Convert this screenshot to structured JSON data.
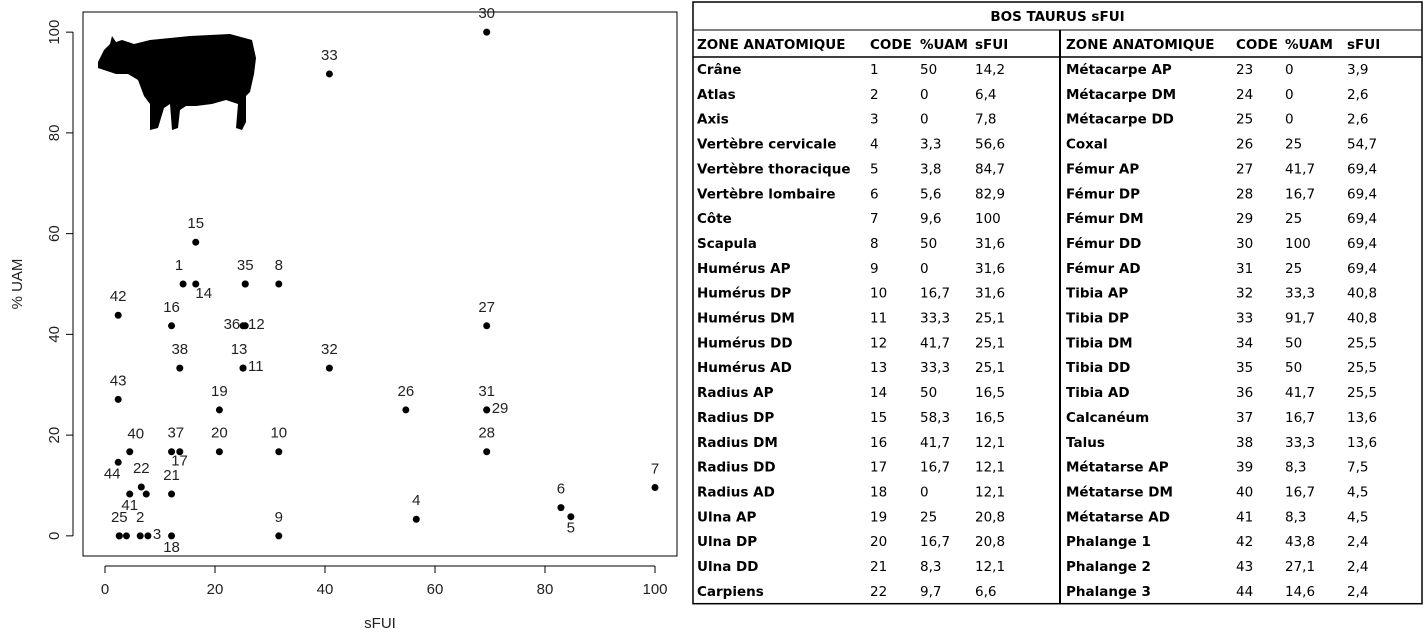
{
  "chart_data": {
    "type": "scatter",
    "xlabel": "sFUI",
    "ylabel": "% UAM",
    "x": [
      14.2,
      6.4,
      7.8,
      56.6,
      84.7,
      82.9,
      100,
      31.6,
      31.6,
      31.6,
      25.1,
      25.1,
      25.1,
      16.5,
      16.5,
      12.1,
      12.1,
      12.1,
      20.8,
      20.8,
      12.1,
      6.6,
      3.9,
      2.6,
      2.6,
      54.7,
      69.4,
      69.4,
      69.4,
      69.4,
      69.4,
      40.8,
      40.8,
      25.5,
      25.5,
      25.5,
      13.6,
      13.6,
      7.5,
      4.5,
      4.5,
      2.4,
      2.4,
      2.4
    ],
    "values": [
      50,
      0,
      0,
      3.3,
      3.8,
      5.6,
      9.6,
      50,
      0,
      16.7,
      33.3,
      41.7,
      33.3,
      50,
      58.3,
      41.7,
      16.7,
      0,
      25,
      16.7,
      8.3,
      9.7,
      0,
      0,
      0,
      25,
      41.7,
      16.7,
      25,
      100,
      25,
      33.3,
      91.7,
      50,
      50,
      41.7,
      16.7,
      33.3,
      8.3,
      16.7,
      8.3,
      43.8,
      27.1,
      14.6
    ],
    "point_labels": [
      "1",
      "2",
      "3",
      "4",
      "5",
      "6",
      "7",
      "8",
      "9",
      "10",
      "11",
      "12",
      "13",
      "14",
      "15",
      "16",
      "17",
      "18",
      "19",
      "20",
      "21",
      "22",
      null,
      null,
      "25",
      "26",
      "27",
      "28",
      "29",
      "30",
      "31",
      "32",
      "33",
      null,
      "35",
      "36",
      "37",
      "38",
      null,
      "40",
      "41",
      "42",
      "43",
      "44"
    ],
    "color": "#000000",
    "xlim": [
      -4,
      104
    ],
    "ylim": [
      -4,
      104
    ],
    "xticks": [
      0,
      20,
      40,
      60,
      80,
      100
    ],
    "yticks": [
      0,
      20,
      40,
      60,
      80,
      100
    ],
    "grid": false
  },
  "table": {
    "title": "BOS TAURUS sFUI",
    "columns": [
      "ZONE ANATOMIQUE",
      "CODE",
      "%UAM",
      "sFUI",
      "ZONE ANATOMIQUE",
      "CODE",
      "%UAM",
      "sFUI"
    ],
    "rows": [
      [
        "Crâne",
        "1",
        "50",
        "14,2",
        "Métacarpe AP",
        "23",
        "0",
        "3,9"
      ],
      [
        "Atlas",
        "2",
        "0",
        "6,4",
        "Métacarpe DM",
        "24",
        "0",
        "2,6"
      ],
      [
        "Axis",
        "3",
        "0",
        "7,8",
        "Métacarpe DD",
        "25",
        "0",
        "2,6"
      ],
      [
        "Vertèbre cervicale",
        "4",
        "3,3",
        "56,6",
        "Coxal",
        "26",
        "25",
        "54,7"
      ],
      [
        "Vertèbre thoracique",
        "5",
        "3,8",
        "84,7",
        "Fémur AP",
        "27",
        "41,7",
        "69,4"
      ],
      [
        "Vertèbre lombaire",
        "6",
        "5,6",
        "82,9",
        "Fémur DP",
        "28",
        "16,7",
        "69,4"
      ],
      [
        "Côte",
        "7",
        "9,6",
        "100",
        "Fémur DM",
        "29",
        "25",
        "69,4"
      ],
      [
        "Scapula",
        "8",
        "50",
        "31,6",
        "Fémur DD",
        "30",
        "100",
        "69,4"
      ],
      [
        "Humérus AP",
        "9",
        "0",
        "31,6",
        "Fémur AD",
        "31",
        "25",
        "69,4"
      ],
      [
        "Humérus DP",
        "10",
        "16,7",
        "31,6",
        "Tibia AP",
        "32",
        "33,3",
        "40,8"
      ],
      [
        "Humérus DM",
        "11",
        "33,3",
        "25,1",
        "Tibia DP",
        "33",
        "91,7",
        "40,8"
      ],
      [
        "Humérus DD",
        "12",
        "41,7",
        "25,1",
        "Tibia DM",
        "34",
        "50",
        "25,5"
      ],
      [
        "Humérus AD",
        "13",
        "33,3",
        "25,1",
        "Tibia DD",
        "35",
        "50",
        "25,5"
      ],
      [
        "Radius AP",
        "14",
        "50",
        "16,5",
        "Tibia AD",
        "36",
        "41,7",
        "25,5"
      ],
      [
        "Radius DP",
        "15",
        "58,3",
        "16,5",
        "Calcanéum",
        "37",
        "16,7",
        "13,6"
      ],
      [
        "Radius DM",
        "16",
        "41,7",
        "12,1",
        "Talus",
        "38",
        "33,3",
        "13,6"
      ],
      [
        "Radius DD",
        "17",
        "16,7",
        "12,1",
        "Métatarse AP",
        "39",
        "8,3",
        "7,5"
      ],
      [
        "Radius AD",
        "18",
        "0",
        "12,1",
        "Métatarse DM",
        "40",
        "16,7",
        "4,5"
      ],
      [
        "Ulna AP",
        "19",
        "25",
        "20,8",
        "Métatarse AD",
        "41",
        "8,3",
        "4,5"
      ],
      [
        "Ulna DP",
        "20",
        "16,7",
        "20,8",
        "Phalange 1",
        "42",
        "43,8",
        "2,4"
      ],
      [
        "Ulna DD",
        "21",
        "8,3",
        "12,1",
        "Phalange 2",
        "43",
        "27,1",
        "2,4"
      ],
      [
        "Carpiens",
        "22",
        "9,7",
        "6,6",
        "Phalange 3",
        "44",
        "14,6",
        "2,4"
      ]
    ]
  }
}
